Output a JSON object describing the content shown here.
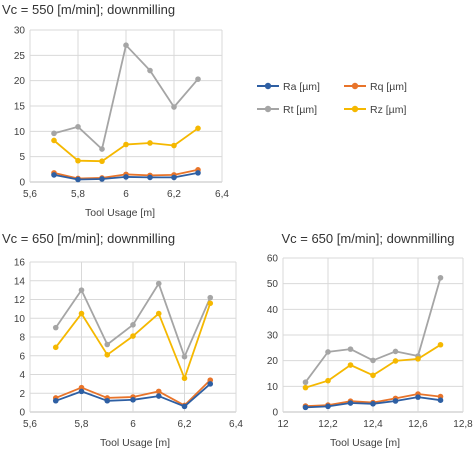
{
  "colors": {
    "Ra": "#2e5fa3",
    "Rq": "#e8742a",
    "Rt": "#a5a5a5",
    "Rz": "#f5b800",
    "grid": "#d9d9d9",
    "text": "#404040"
  },
  "legend_position": "right of chart 1",
  "chart_data": [
    {
      "type": "line",
      "title": "Vc = 550 [m/min]; downmilling",
      "xlabel": "Tool Usage [m]",
      "ylabel": "",
      "xlim": [
        5.6,
        6.4
      ],
      "ylim": [
        0,
        30
      ],
      "xticks": [
        5.6,
        5.8,
        6.0,
        6.2,
        6.4
      ],
      "xtick_labels": [
        "5,6",
        "5,8",
        "6",
        "6,2",
        "6,4"
      ],
      "yticks": [
        0,
        5,
        10,
        15,
        20,
        25,
        30
      ],
      "ytick_labels": [
        "0",
        "5",
        "10",
        "15",
        "20",
        "25",
        "30"
      ],
      "grid": true,
      "x": [
        5.7,
        5.8,
        5.9,
        6.0,
        6.1,
        6.2,
        6.3
      ],
      "series": [
        {
          "name": "Ra [µm]",
          "key": "Ra",
          "values": [
            1.4,
            0.5,
            0.6,
            1.0,
            0.9,
            0.9,
            1.8
          ]
        },
        {
          "name": "Rq [µm]",
          "key": "Rq",
          "values": [
            1.8,
            0.7,
            0.8,
            1.5,
            1.3,
            1.4,
            2.4
          ]
        },
        {
          "name": "Rt [µm]",
          "key": "Rt",
          "values": [
            9.6,
            10.9,
            6.5,
            27.0,
            22.0,
            14.8,
            20.3
          ]
        },
        {
          "name": "Rz [µm]",
          "key": "Rz",
          "values": [
            8.2,
            4.2,
            4.1,
            7.4,
            7.7,
            7.2,
            10.6
          ]
        }
      ],
      "legend": [
        "Ra [µm]",
        "Rq [µm]",
        "Rt [µm]",
        "Rz [µm]"
      ]
    },
    {
      "type": "line",
      "title": "Vc = 650 [m/min]; downmilling",
      "xlabel": "Tool Usage [m]",
      "ylabel": "",
      "xlim": [
        5.6,
        6.4
      ],
      "ylim": [
        0,
        16
      ],
      "xticks": [
        5.6,
        5.8,
        6.0,
        6.2,
        6.4
      ],
      "xtick_labels": [
        "5,6",
        "5,8",
        "6",
        "6,2",
        "6,4"
      ],
      "yticks": [
        0,
        2,
        4,
        6,
        8,
        10,
        12,
        14,
        16
      ],
      "ytick_labels": [
        "0",
        "2",
        "4",
        "6",
        "8",
        "10",
        "12",
        "14",
        "16"
      ],
      "grid": true,
      "x": [
        5.7,
        5.8,
        5.9,
        6.0,
        6.1,
        6.2,
        6.3
      ],
      "series": [
        {
          "name": "Ra [µm]",
          "key": "Ra",
          "values": [
            1.2,
            2.2,
            1.2,
            1.3,
            1.7,
            0.6,
            3.0
          ]
        },
        {
          "name": "Rq [µm]",
          "key": "Rq",
          "values": [
            1.5,
            2.6,
            1.5,
            1.6,
            2.2,
            0.7,
            3.4
          ]
        },
        {
          "name": "Rt [µm]",
          "key": "Rt",
          "values": [
            9.0,
            13.0,
            7.2,
            9.3,
            13.7,
            5.9,
            12.2
          ]
        },
        {
          "name": "Rz [µm]",
          "key": "Rz",
          "values": [
            6.9,
            10.5,
            6.1,
            8.1,
            10.5,
            3.6,
            11.6
          ]
        }
      ]
    },
    {
      "type": "line",
      "title": "Vc = 650 [m/min]; downmilling",
      "xlabel": "Tool Usage [m]",
      "ylabel": "",
      "xlim": [
        12.0,
        12.8
      ],
      "ylim": [
        0,
        60
      ],
      "xticks": [
        12.0,
        12.2,
        12.4,
        12.6,
        12.8
      ],
      "xtick_labels": [
        "12",
        "12,2",
        "12,4",
        "12,6",
        "12,8"
      ],
      "yticks": [
        0,
        10,
        20,
        30,
        40,
        50,
        60
      ],
      "ytick_labels": [
        "0",
        "10",
        "20",
        "30",
        "40",
        "50",
        "60"
      ],
      "grid": true,
      "x": [
        12.1,
        12.2,
        12.3,
        12.4,
        12.5,
        12.6,
        12.7
      ],
      "series": [
        {
          "name": "Ra [µm]",
          "key": "Ra",
          "values": [
            1.8,
            2.2,
            3.5,
            3.2,
            4.3,
            5.8,
            4.6
          ]
        },
        {
          "name": "Rq [µm]",
          "key": "Rq",
          "values": [
            2.3,
            2.7,
            4.2,
            3.7,
            5.3,
            7.0,
            6.0
          ]
        },
        {
          "name": "Rt [µm]",
          "key": "Rt",
          "values": [
            11.6,
            23.4,
            24.5,
            20.1,
            23.6,
            21.8,
            52.3
          ]
        },
        {
          "name": "Rz [µm]",
          "key": "Rz",
          "values": [
            9.5,
            12.2,
            18.3,
            14.3,
            19.9,
            20.7,
            26.2
          ]
        }
      ]
    }
  ]
}
